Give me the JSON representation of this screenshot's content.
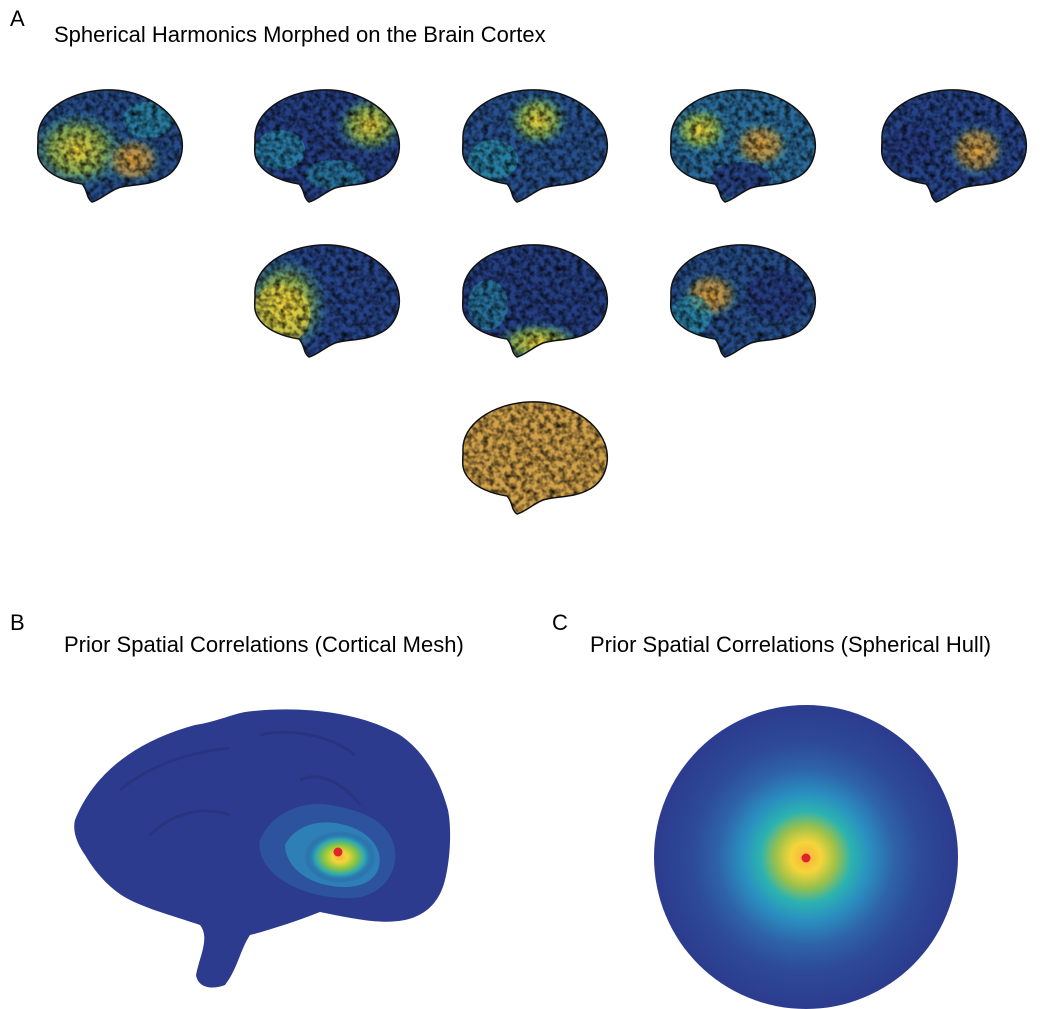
{
  "panel_a": {
    "letter": "A",
    "title": "Spherical Harmonics Morphed on the Brain Cortex",
    "brains": [
      {
        "row": 0,
        "pattern": "yellow-front-center"
      },
      {
        "row": 0,
        "pattern": "yellow-back-top"
      },
      {
        "row": 0,
        "pattern": "yellow-top-center"
      },
      {
        "row": 0,
        "pattern": "yellow-top-split"
      },
      {
        "row": 0,
        "pattern": "yellow-center-right"
      },
      {
        "row": 1,
        "pattern": "yellow-front"
      },
      {
        "row": 1,
        "pattern": "yellow-bottom"
      },
      {
        "row": 1,
        "pattern": "orange-front-mid"
      },
      {
        "row": 2,
        "pattern": "uniform-orange"
      }
    ]
  },
  "panel_b": {
    "letter": "B",
    "title": "Prior Spatial Correlations (Cortical Mesh)"
  },
  "panel_c": {
    "letter": "C",
    "title": "Prior Spatial Correlations (Spherical Hull)"
  },
  "colors": {
    "dark_blue": "#2c3b8e",
    "teal": "#2a9fb3",
    "yellow": "#f5d53a",
    "orange": "#e8a43c",
    "marker_red": "#e0242c"
  }
}
